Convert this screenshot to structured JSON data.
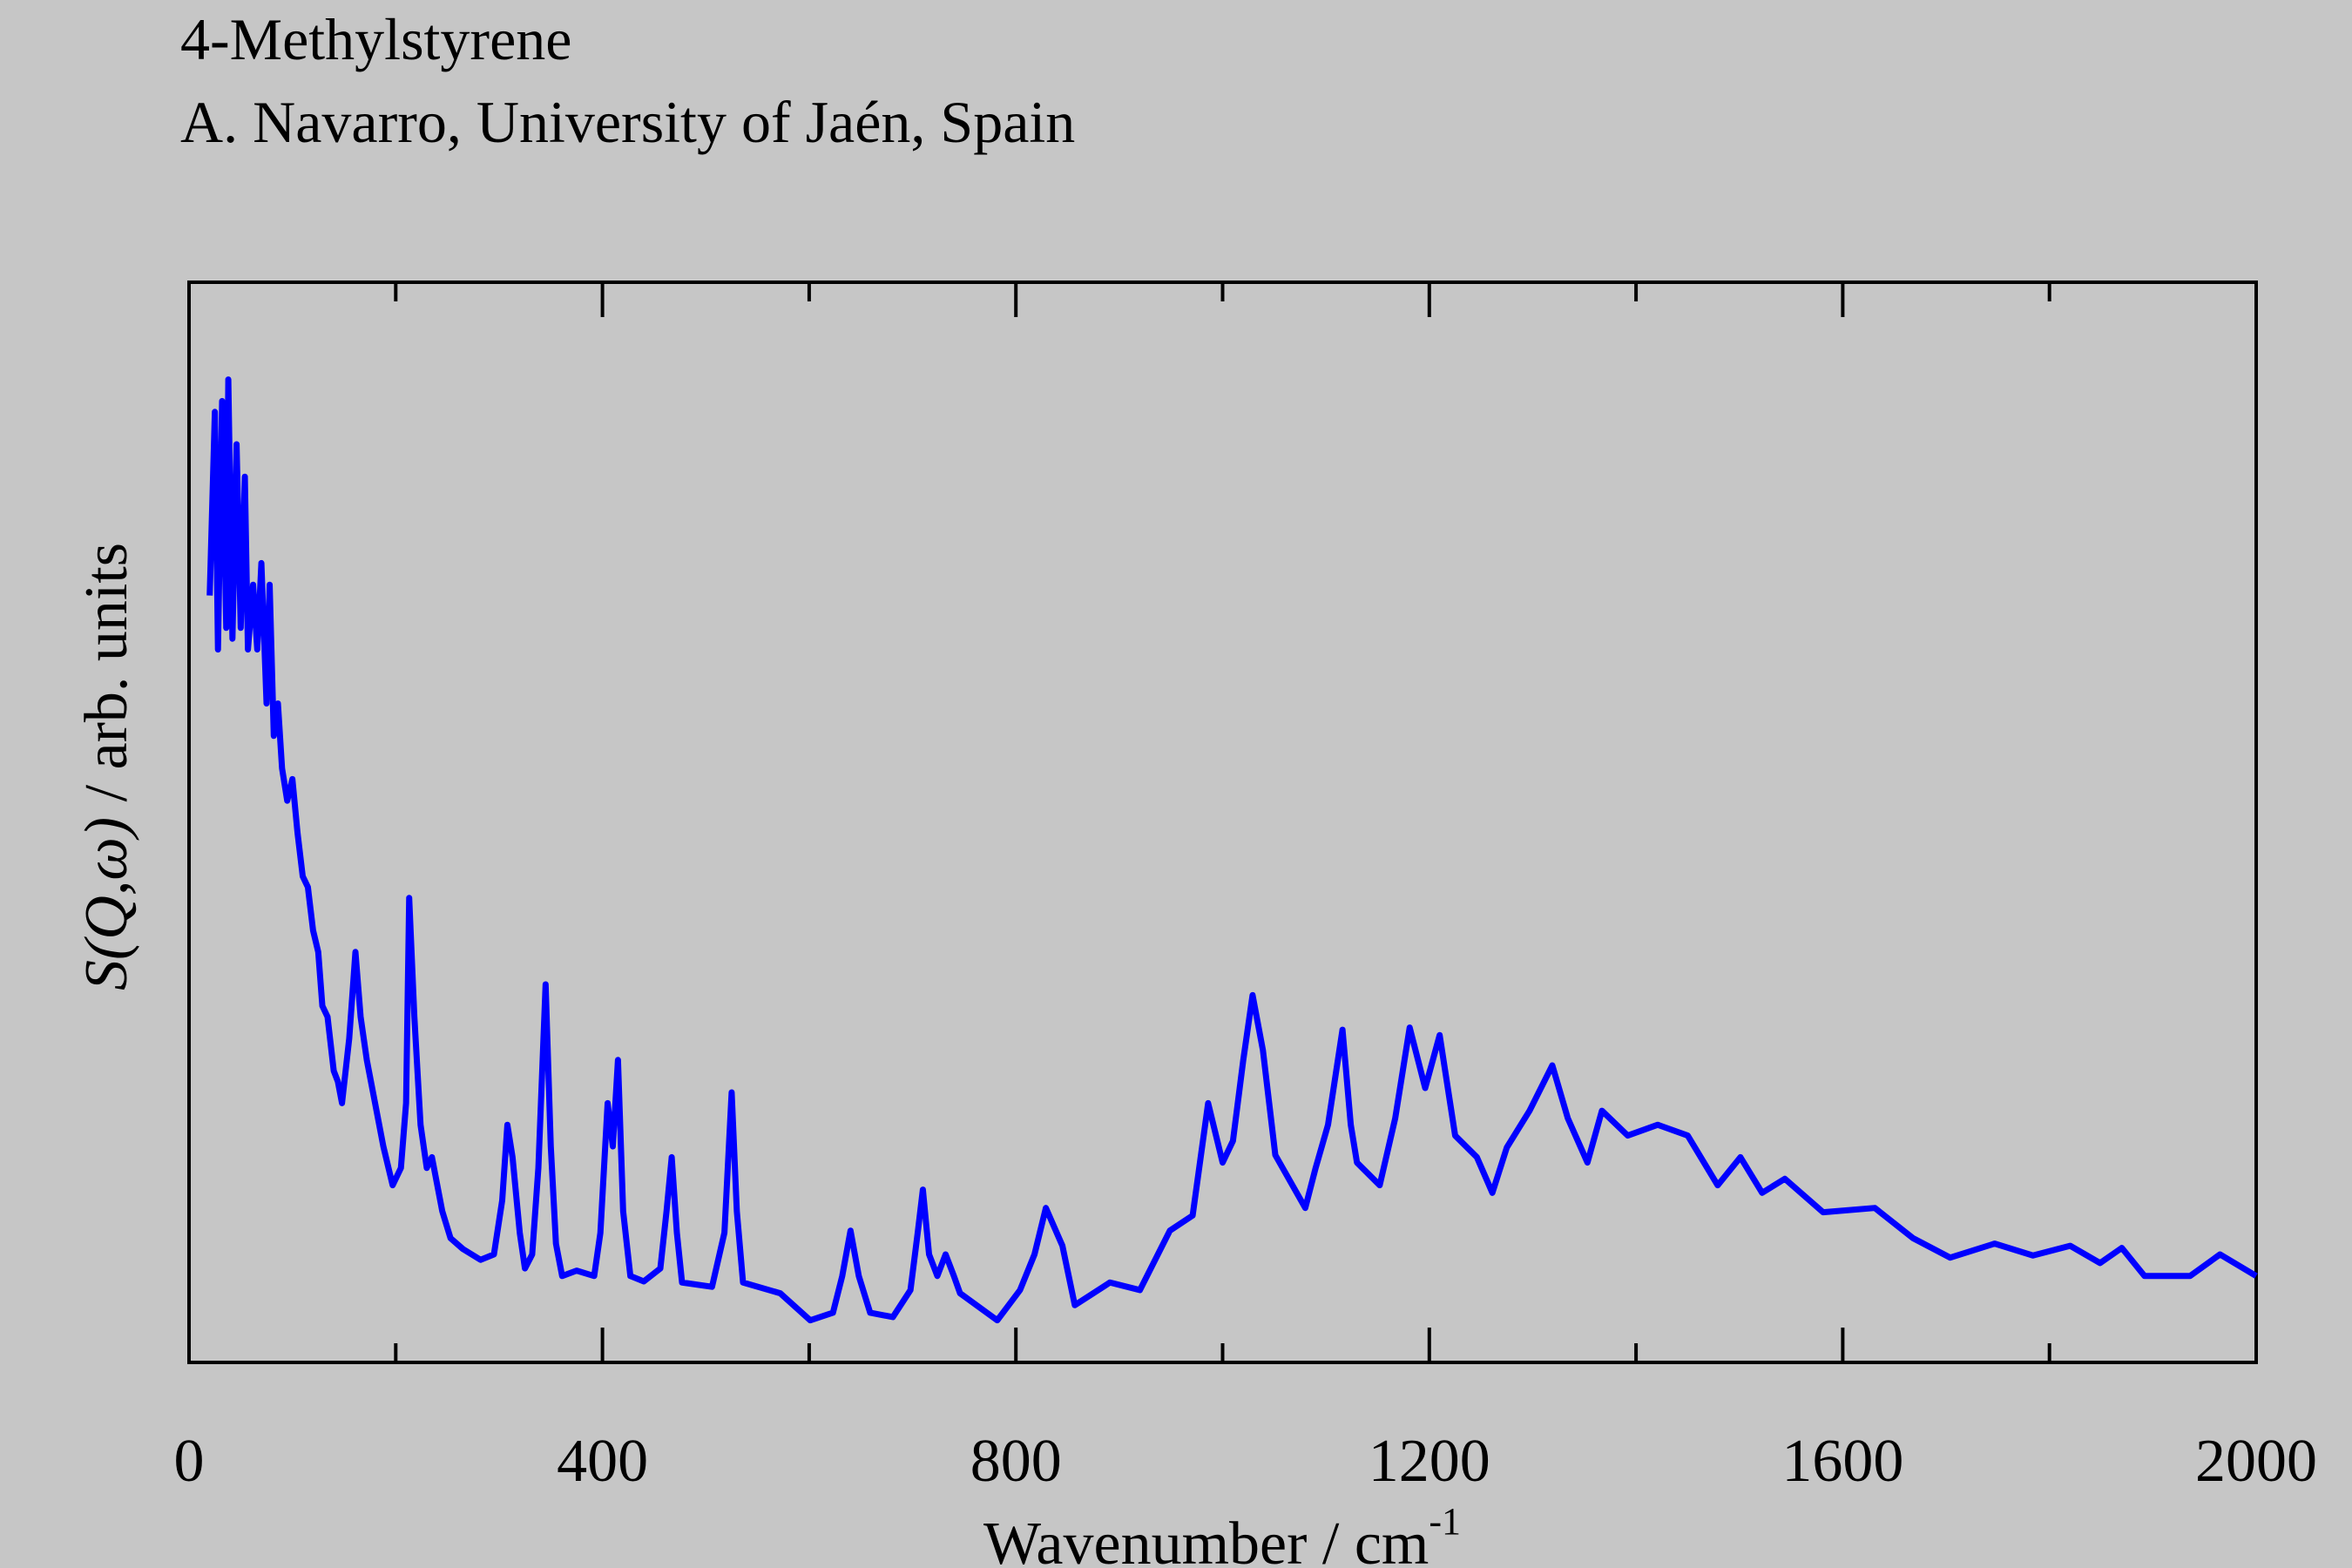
{
  "chart_data": {
    "type": "line",
    "title": "4-Methylstyrene",
    "subtitle": "A. Navarro, University of Jaén, Spain",
    "xlabel": "Wavenumber / cm",
    "xlabel_superscript": "-1",
    "ylabel_symbol": "S(Q,ω)",
    "ylabel": " / arb. units",
    "xlim": [
      0,
      2000
    ],
    "ylim": [
      0,
      100
    ],
    "xticks": [
      0,
      400,
      800,
      1200,
      1600,
      2000
    ],
    "xminorticks": [
      200,
      600,
      1000,
      1400,
      1800
    ],
    "series": [
      {
        "color": "#0000ff",
        "x": [
          20,
          25,
          28,
          32,
          36,
          38,
          42,
          46,
          50,
          54,
          57,
          62,
          66,
          70,
          75,
          78,
          82,
          86,
          90,
          95,
          100,
          105,
          110,
          115,
          120,
          125,
          129,
          134,
          140,
          144,
          148,
          155,
          161,
          166,
          172,
          180,
          188,
          197,
          205,
          210,
          213,
          218,
          224,
          230,
          235,
          245,
          253,
          265,
          282,
          295,
          303,
          308,
          313,
          320,
          325,
          332,
          338,
          345,
          350,
          355,
          361,
          375,
          392,
          398,
          405,
          410,
          415,
          420,
          427,
          440,
          456,
          462,
          467,
          472,
          477,
          506,
          518,
          525,
          530,
          536,
          572,
          601,
          623,
          632,
          640,
          648,
          659,
          681,
          698,
          705,
          710,
          716,
          724,
          732,
          740,
          746,
          782,
          804,
          818,
          829,
          845,
          857,
          891,
          920,
          949,
          971,
          986,
          1000,
          1010,
          1020,
          1029,
          1039,
          1051,
          1080,
          1090,
          1102,
          1116,
          1124,
          1130,
          1152,
          1167,
          1181,
          1196,
          1210,
          1225,
          1246,
          1261,
          1275,
          1297,
          1319,
          1334,
          1353,
          1367,
          1392,
          1421,
          1450,
          1479,
          1501,
          1522,
          1544,
          1581,
          1631,
          1668,
          1704,
          1747,
          1784,
          1820,
          1849,
          1870,
          1892,
          1936,
          1965,
          2000
        ],
        "values": [
          71,
          88,
          66,
          89,
          68,
          91,
          67,
          85,
          68,
          82,
          66,
          72,
          66,
          74,
          61,
          72,
          58,
          61,
          55,
          52,
          54,
          49,
          45,
          44,
          40,
          38,
          33,
          32,
          27,
          26,
          24,
          30,
          38,
          32,
          28,
          24,
          20,
          16.4,
          18,
          24,
          43,
          32,
          22,
          18,
          19,
          14,
          11.5,
          10.5,
          9.5,
          10,
          15,
          22,
          19,
          12,
          8.7,
          10,
          18,
          35,
          20,
          11,
          8,
          8.5,
          8,
          12,
          24,
          20,
          28,
          14,
          8,
          7.5,
          8.7,
          14,
          19,
          12,
          7.4,
          7,
          12,
          25,
          14,
          7.4,
          6.4,
          3.9,
          4.6,
          8,
          12.2,
          8,
          4.6,
          4.2,
          6.7,
          12,
          16,
          10,
          8,
          10,
          8,
          6.4,
          3.9,
          6.7,
          10,
          14.3,
          10.8,
          5.3,
          7.4,
          6.7,
          12.2,
          13.6,
          24,
          18.5,
          20.5,
          28,
          34,
          28.9,
          19.2,
          14.3,
          18,
          22,
          30.8,
          22,
          18.5,
          16.4,
          22.6,
          31,
          25.4,
          30.3,
          21,
          19,
          15.7,
          19.9,
          23.3,
          27.5,
          22.6,
          18.5,
          23.3,
          21,
          22,
          21,
          16.4,
          19,
          15.7,
          17,
          13.9,
          14.3,
          11.5,
          9.7,
          11,
          9.9,
          10.8,
          9.2,
          10.6,
          8,
          8,
          10,
          8
        ]
      }
    ]
  }
}
